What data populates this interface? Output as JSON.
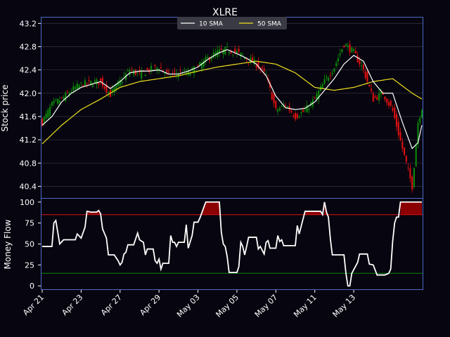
{
  "chart_data": [
    {
      "type": "candlestick",
      "title": "XLRE",
      "xlabel": "",
      "ylabel": "Stock price",
      "ylim": [
        40.2,
        43.3
      ],
      "yticks": [
        40.4,
        40.8,
        41.2,
        41.6,
        42.0,
        42.4,
        42.8,
        43.2
      ],
      "xticks": [
        "Apr 21",
        "Apr 23",
        "Apr 27",
        "Apr 29",
        "May 03",
        "May 05",
        "May 07",
        "May 11",
        "May 13"
      ],
      "xtick_index": [
        0,
        20,
        40,
        60,
        80,
        100,
        120,
        140,
        160
      ],
      "grid": true,
      "legend_position": "top-center",
      "legend": [
        {
          "name": "10 SMA",
          "color": "#ffffff"
        },
        {
          "name": "50 SMA",
          "color": "#f0e020"
        }
      ],
      "colors": {
        "up": "#0a8a0a",
        "down": "#e01010",
        "background": "#07050f",
        "frame": "#4a6cc8",
        "grid": "#2f2f3a",
        "text": "#ffffff"
      },
      "n_points": 196,
      "close_anchors": [
        [
          0,
          41.5
        ],
        [
          5,
          41.8
        ],
        [
          10,
          41.9
        ],
        [
          15,
          42.05
        ],
        [
          20,
          42.15
        ],
        [
          25,
          42.18
        ],
        [
          30,
          42.2
        ],
        [
          35,
          41.98
        ],
        [
          40,
          42.2
        ],
        [
          45,
          42.4
        ],
        [
          50,
          42.32
        ],
        [
          55,
          42.4
        ],
        [
          60,
          42.45
        ],
        [
          65,
          42.3
        ],
        [
          70,
          42.35
        ],
        [
          75,
          42.35
        ],
        [
          80,
          42.45
        ],
        [
          85,
          42.6
        ],
        [
          90,
          42.7
        ],
        [
          95,
          42.75
        ],
        [
          100,
          42.7
        ],
        [
          105,
          42.6
        ],
        [
          110,
          42.5
        ],
        [
          115,
          42.3
        ],
        [
          120,
          41.7
        ],
        [
          125,
          41.8
        ],
        [
          130,
          41.6
        ],
        [
          135,
          41.7
        ],
        [
          140,
          41.9
        ],
        [
          145,
          42.2
        ],
        [
          150,
          42.45
        ],
        [
          155,
          42.85
        ],
        [
          160,
          42.7
        ],
        [
          165,
          42.4
        ],
        [
          170,
          41.9
        ],
        [
          175,
          42.0
        ],
        [
          180,
          41.7
        ],
        [
          185,
          41.05
        ],
        [
          190,
          40.4
        ],
        [
          193,
          41.5
        ],
        [
          195,
          41.75
        ]
      ],
      "sma10_anchors": [
        [
          0,
          41.45
        ],
        [
          5,
          41.6
        ],
        [
          10,
          41.85
        ],
        [
          15,
          42.0
        ],
        [
          20,
          42.1
        ],
        [
          25,
          42.15
        ],
        [
          30,
          42.2
        ],
        [
          35,
          42.08
        ],
        [
          40,
          42.2
        ],
        [
          45,
          42.35
        ],
        [
          50,
          42.38
        ],
        [
          55,
          42.38
        ],
        [
          60,
          42.4
        ],
        [
          65,
          42.33
        ],
        [
          70,
          42.33
        ],
        [
          75,
          42.38
        ],
        [
          80,
          42.45
        ],
        [
          85,
          42.58
        ],
        [
          90,
          42.68
        ],
        [
          95,
          42.75
        ],
        [
          100,
          42.68
        ],
        [
          105,
          42.6
        ],
        [
          110,
          42.5
        ],
        [
          115,
          42.3
        ],
        [
          120,
          41.95
        ],
        [
          125,
          41.75
        ],
        [
          130,
          41.72
        ],
        [
          135,
          41.74
        ],
        [
          140,
          41.85
        ],
        [
          145,
          42.05
        ],
        [
          150,
          42.25
        ],
        [
          155,
          42.5
        ],
        [
          160,
          42.65
        ],
        [
          165,
          42.55
        ],
        [
          170,
          42.2
        ],
        [
          175,
          42.0
        ],
        [
          180,
          42.0
        ],
        [
          185,
          41.5
        ],
        [
          190,
          41.05
        ],
        [
          193,
          41.15
        ],
        [
          195,
          41.45
        ]
      ],
      "sma50_anchors": [
        [
          0,
          41.13
        ],
        [
          10,
          41.45
        ],
        [
          20,
          41.72
        ],
        [
          30,
          41.9
        ],
        [
          40,
          42.1
        ],
        [
          50,
          42.2
        ],
        [
          60,
          42.25
        ],
        [
          70,
          42.3
        ],
        [
          80,
          42.38
        ],
        [
          90,
          42.45
        ],
        [
          100,
          42.5
        ],
        [
          110,
          42.55
        ],
        [
          120,
          42.5
        ],
        [
          130,
          42.35
        ],
        [
          140,
          42.1
        ],
        [
          150,
          42.05
        ],
        [
          160,
          42.1
        ],
        [
          170,
          42.2
        ],
        [
          180,
          42.25
        ],
        [
          190,
          42.0
        ],
        [
          195,
          41.9
        ]
      ]
    },
    {
      "type": "line",
      "title": "",
      "xlabel": "",
      "ylabel": "Money Flow",
      "ylim": [
        -4,
        104
      ],
      "yticks": [
        0,
        25,
        50,
        75,
        100
      ],
      "overbought": 85,
      "oversold": 15,
      "colors": {
        "line": "#ffffff",
        "overbought": "#e01010",
        "oversold": "#0a8a0a",
        "fill": "#8b0000"
      },
      "mf_anchors": [
        [
          0,
          47
        ],
        [
          5,
          47
        ],
        [
          6,
          75
        ],
        [
          7,
          78
        ],
        [
          9,
          50
        ],
        [
          11,
          55
        ],
        [
          17,
          55
        ],
        [
          18,
          62
        ],
        [
          20,
          57
        ],
        [
          22,
          70
        ],
        [
          23,
          89
        ],
        [
          25,
          88
        ],
        [
          28,
          88
        ],
        [
          29,
          90
        ],
        [
          30,
          86
        ],
        [
          31,
          68
        ],
        [
          33,
          57
        ],
        [
          34,
          37
        ],
        [
          37,
          37
        ],
        [
          39,
          30
        ],
        [
          40,
          25
        ],
        [
          41,
          28
        ],
        [
          42,
          38
        ],
        [
          43,
          40
        ],
        [
          44,
          49
        ],
        [
          47,
          49
        ],
        [
          49,
          63
        ],
        [
          50,
          55
        ],
        [
          52,
          52
        ],
        [
          53,
          37
        ],
        [
          54,
          44
        ],
        [
          57,
          44
        ],
        [
          58,
          30
        ],
        [
          59,
          27
        ],
        [
          60,
          32
        ],
        [
          61,
          20
        ],
        [
          62,
          27
        ],
        [
          65,
          27
        ],
        [
          66,
          60
        ],
        [
          67,
          52
        ],
        [
          68,
          52
        ],
        [
          69,
          47
        ],
        [
          70,
          52
        ],
        [
          73,
          52
        ],
        [
          74,
          73
        ],
        [
          75,
          45
        ],
        [
          77,
          60
        ],
        [
          78,
          76
        ],
        [
          80,
          76
        ],
        [
          81,
          81
        ],
        [
          84,
          100
        ],
        [
          88,
          100
        ],
        [
          91,
          100
        ],
        [
          92,
          64
        ],
        [
          93,
          50
        ],
        [
          94,
          47
        ],
        [
          95,
          35
        ],
        [
          96,
          16
        ],
        [
          100,
          16
        ],
        [
          101,
          23
        ],
        [
          102,
          52
        ],
        [
          103,
          47
        ],
        [
          104,
          37
        ],
        [
          105,
          47
        ],
        [
          106,
          58
        ],
        [
          110,
          58
        ],
        [
          111,
          44
        ],
        [
          112,
          47
        ],
        [
          114,
          38
        ],
        [
          115,
          52
        ],
        [
          116,
          54
        ],
        [
          117,
          45
        ],
        [
          120,
          45
        ],
        [
          121,
          60
        ],
        [
          122,
          53
        ],
        [
          123,
          55
        ],
        [
          124,
          48
        ],
        [
          130,
          48
        ],
        [
          131,
          72
        ],
        [
          132,
          62
        ],
        [
          134,
          80
        ],
        [
          135,
          89
        ],
        [
          139,
          89
        ],
        [
          143,
          89
        ],
        [
          144,
          85
        ],
        [
          145,
          100
        ],
        [
          146,
          88
        ],
        [
          147,
          82
        ],
        [
          148,
          56
        ],
        [
          149,
          37
        ],
        [
          155,
          37
        ],
        [
          156,
          15
        ],
        [
          157,
          0
        ],
        [
          158,
          0
        ],
        [
          159,
          15
        ],
        [
          162,
          28
        ],
        [
          163,
          38
        ],
        [
          167,
          38
        ],
        [
          168,
          26
        ],
        [
          170,
          25
        ],
        [
          172,
          13
        ],
        [
          176,
          13
        ],
        [
          178,
          15
        ],
        [
          179,
          20
        ],
        [
          180,
          53
        ],
        [
          181,
          75
        ],
        [
          182,
          82
        ],
        [
          183,
          82
        ],
        [
          184,
          100
        ],
        [
          186,
          100
        ]
      ]
    }
  ]
}
